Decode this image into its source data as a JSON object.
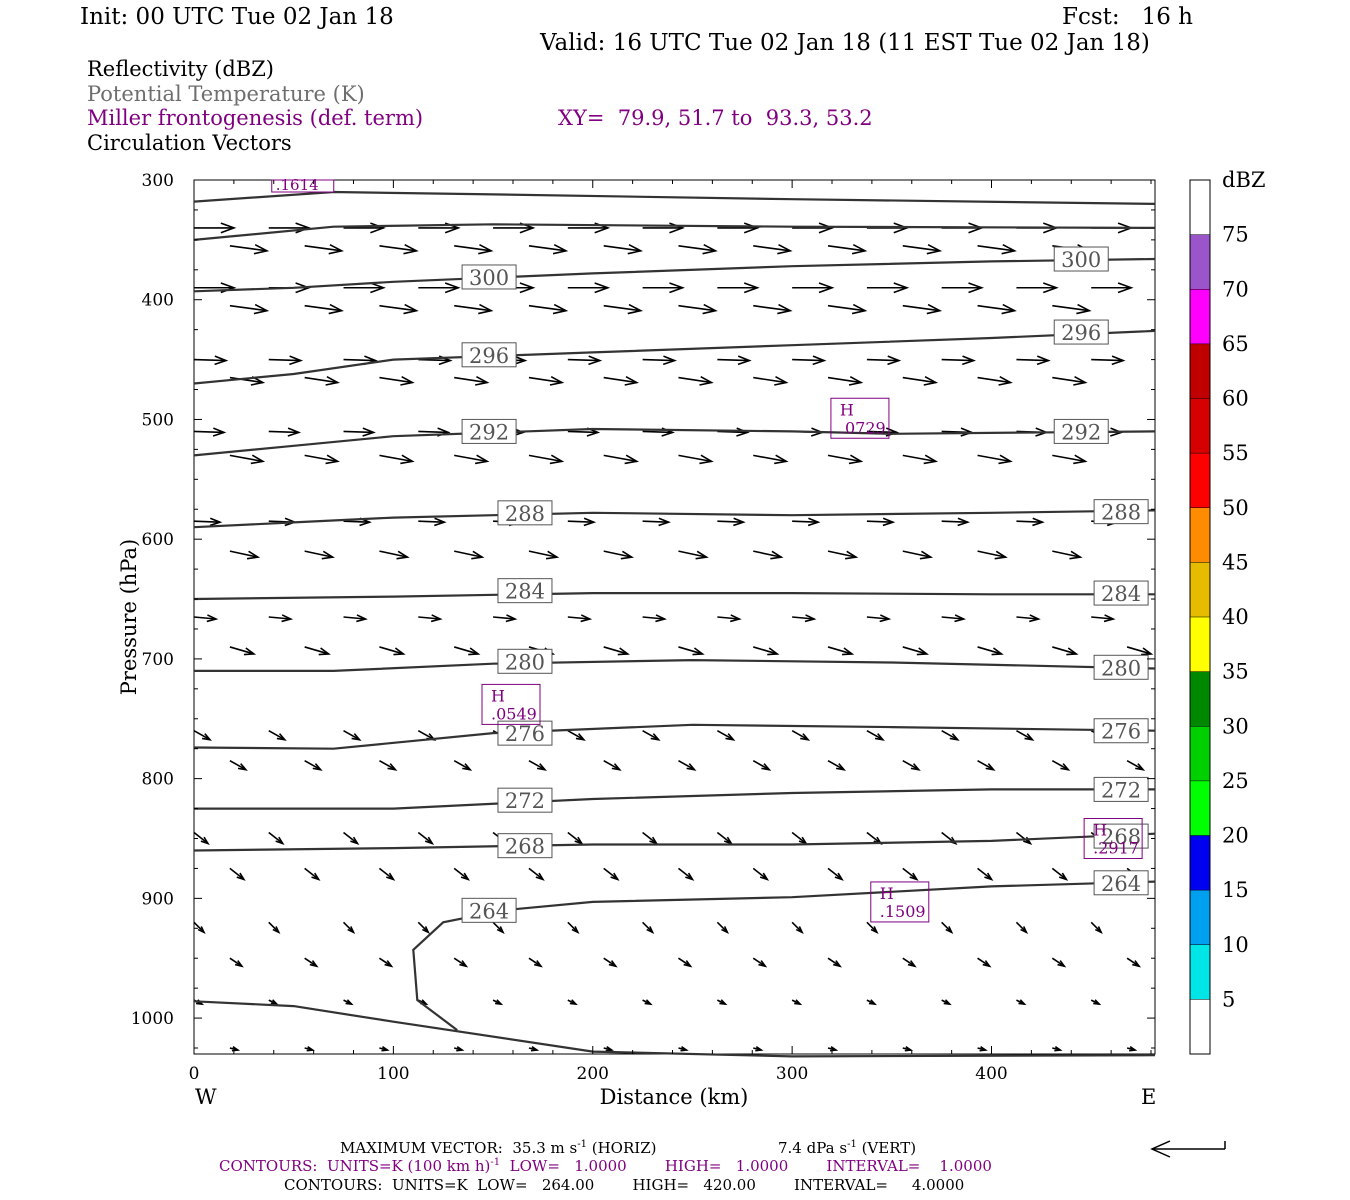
{
  "header": {
    "init": "Init: 00 UTC Tue 02 Jan 18",
    "fcst": "Fcst:   16 h",
    "valid": "Valid: 16 UTC Tue 02 Jan 18 (11 EST Tue 02 Jan 18)",
    "fields": [
      "Reflectivity (dBZ)",
      "Potential Temperature (K)",
      "Miller frontogenesis (def. term)",
      "Circulation Vectors"
    ],
    "xy": "XY=  79.9, 51.7 to  93.3, 53.2"
  },
  "colors": {
    "purple": "#800080",
    "gray_text": "#6e6e6e",
    "contour": "#333333"
  },
  "chart_data": {
    "type": "cross-section",
    "xlabel": "Distance (km)",
    "ylabel": "Pressure (hPa)",
    "x_ticks": [
      0,
      100,
      200,
      300,
      400
    ],
    "y_ticks": [
      300,
      400,
      500,
      600,
      700,
      800,
      900,
      1000
    ],
    "xlim": [
      0,
      482
    ],
    "ylim": [
      1030,
      300
    ],
    "y_scale": "linear",
    "west_label": "W",
    "east_label": "E",
    "theta_contours": [
      {
        "value": 300,
        "label": "300",
        "points": [
          [
            0,
            393
          ],
          [
            50,
            390
          ],
          [
            100,
            385
          ],
          [
            200,
            378
          ],
          [
            300,
            372
          ],
          [
            400,
            368
          ],
          [
            482,
            366
          ]
        ]
      },
      {
        "value": 296,
        "label": "296",
        "points": [
          [
            0,
            470
          ],
          [
            50,
            462
          ],
          [
            100,
            450
          ],
          [
            200,
            444
          ],
          [
            300,
            438
          ],
          [
            400,
            432
          ],
          [
            482,
            426
          ]
        ]
      },
      {
        "value": 292,
        "label": "292",
        "points": [
          [
            0,
            530
          ],
          [
            50,
            522
          ],
          [
            100,
            514
          ],
          [
            200,
            508
          ],
          [
            300,
            510
          ],
          [
            350,
            512
          ],
          [
            482,
            510
          ]
        ]
      },
      {
        "value": 288,
        "label": "288",
        "points": [
          [
            0,
            590
          ],
          [
            50,
            586
          ],
          [
            100,
            582
          ],
          [
            200,
            578
          ],
          [
            300,
            580
          ],
          [
            400,
            578
          ],
          [
            482,
            576
          ]
        ]
      },
      {
        "value": 284,
        "label": "284",
        "points": [
          [
            0,
            650
          ],
          [
            100,
            648
          ],
          [
            200,
            645
          ],
          [
            300,
            645
          ],
          [
            400,
            646
          ],
          [
            482,
            646
          ]
        ]
      },
      {
        "value": 280,
        "label": "280",
        "points": [
          [
            0,
            710
          ],
          [
            70,
            710
          ],
          [
            150,
            704
          ],
          [
            250,
            701
          ],
          [
            350,
            703
          ],
          [
            482,
            708
          ]
        ]
      },
      {
        "value": 276,
        "label": "276",
        "points": [
          [
            0,
            774
          ],
          [
            70,
            775
          ],
          [
            150,
            762
          ],
          [
            250,
            755
          ],
          [
            350,
            757
          ],
          [
            482,
            760
          ]
        ]
      },
      {
        "value": 272,
        "label": "272",
        "points": [
          [
            0,
            825
          ],
          [
            100,
            825
          ],
          [
            200,
            817
          ],
          [
            300,
            812
          ],
          [
            400,
            809
          ],
          [
            482,
            809
          ]
        ]
      },
      {
        "value": 268,
        "label": "268",
        "points": [
          [
            0,
            860
          ],
          [
            100,
            858
          ],
          [
            200,
            855
          ],
          [
            300,
            855
          ],
          [
            400,
            852
          ],
          [
            482,
            846
          ]
        ]
      },
      {
        "value": 264,
        "label": "264",
        "points": [
          [
            132,
            1010
          ],
          [
            112,
            985
          ],
          [
            110,
            943
          ],
          [
            125,
            920
          ],
          [
            155,
            910
          ],
          [
            200,
            903
          ],
          [
            300,
            899
          ],
          [
            400,
            890
          ],
          [
            482,
            886
          ]
        ]
      },
      {
        "value": 308,
        "label": "",
        "points": [
          [
            0,
            318
          ],
          [
            70,
            310
          ],
          [
            150,
            312
          ],
          [
            300,
            316
          ],
          [
            482,
            320
          ]
        ]
      },
      {
        "value": 304,
        "label": "",
        "points": [
          [
            0,
            350
          ],
          [
            70,
            339
          ],
          [
            150,
            337
          ],
          [
            300,
            339
          ],
          [
            482,
            340
          ]
        ]
      },
      {
        "value": 260,
        "label": "",
        "points": [
          [
            0,
            986
          ],
          [
            50,
            990
          ],
          [
            100,
            1003
          ],
          [
            200,
            1028
          ],
          [
            300,
            1032
          ],
          [
            482,
            1031
          ]
        ]
      }
    ],
    "theta_labels": [
      {
        "label": "300",
        "x": 148,
        "p": 381
      },
      {
        "label": "300",
        "x": 445,
        "p": 366
      },
      {
        "label": "296",
        "x": 148,
        "p": 446
      },
      {
        "label": "296",
        "x": 445,
        "p": 427
      },
      {
        "label": "292",
        "x": 148,
        "p": 510
      },
      {
        "label": "292",
        "x": 445,
        "p": 510
      },
      {
        "label": "288",
        "x": 166,
        "p": 578
      },
      {
        "label": "288",
        "x": 465,
        "p": 577
      },
      {
        "label": "284",
        "x": 166,
        "p": 643
      },
      {
        "label": "284",
        "x": 465,
        "p": 645
      },
      {
        "label": "280",
        "x": 166,
        "p": 702
      },
      {
        "label": "280",
        "x": 465,
        "p": 707
      },
      {
        "label": "276",
        "x": 166,
        "p": 762
      },
      {
        "label": "276",
        "x": 465,
        "p": 760
      },
      {
        "label": "272",
        "x": 166,
        "p": 818
      },
      {
        "label": "272",
        "x": 465,
        "p": 809
      },
      {
        "label": "268",
        "x": 166,
        "p": 856
      },
      {
        "label": "268",
        "x": 465,
        "p": 848
      },
      {
        "label": "264",
        "x": 148,
        "p": 910
      },
      {
        "label": "264",
        "x": 465,
        "p": 887
      }
    ],
    "frontogenesis_max": [
      {
        "letter": "",
        "value": ".1614",
        "x": 40,
        "p": 300
      },
      {
        "letter": "H",
        "value": ".0729",
        "x": 334,
        "p": 499
      },
      {
        "letter": "H",
        "value": ".0549",
        "x": 159,
        "p": 738
      },
      {
        "letter": "H",
        "value": ".2917",
        "x": 461,
        "p": 850
      },
      {
        "letter": "H",
        "value": ".1509",
        "x": 354,
        "p": 903
      }
    ],
    "reflectivity_scale": {
      "unit": "dBZ",
      "levels": [
        "5",
        "10",
        "15",
        "20",
        "25",
        "30",
        "35",
        "40",
        "45",
        "50",
        "55",
        "60",
        "65",
        "70",
        "75"
      ],
      "colors": [
        "#00e5e5",
        "#00a0f0",
        "#0000f0",
        "#00ff00",
        "#00d000",
        "#008800",
        "#ffff00",
        "#e5bc00",
        "#ff8c00",
        "#ff0000",
        "#d60000",
        "#c00000",
        "#ff00ff",
        "#9955c9"
      ]
    },
    "vector_rows": [
      {
        "p": 340,
        "u": 40,
        "v": 0
      },
      {
        "p": 355,
        "u": 37,
        "v": 5
      },
      {
        "p": 390,
        "u": 40,
        "v": 0
      },
      {
        "p": 405,
        "u": 37,
        "v": 5
      },
      {
        "p": 450,
        "u": 32,
        "v": 1
      },
      {
        "p": 465,
        "u": 33,
        "v": 5
      },
      {
        "p": 510,
        "u": 30,
        "v": 1
      },
      {
        "p": 530,
        "u": 33,
        "v": 6
      },
      {
        "p": 585,
        "u": 26,
        "v": 1
      },
      {
        "p": 610,
        "u": 28,
        "v": 6
      },
      {
        "p": 665,
        "u": 22,
        "v": 2
      },
      {
        "p": 690,
        "u": 24,
        "v": 7
      },
      {
        "p": 760,
        "u": 16,
        "v": 9
      },
      {
        "p": 785,
        "u": 16,
        "v": 9
      },
      {
        "p": 845,
        "u": 14,
        "v": 11
      },
      {
        "p": 875,
        "u": 14,
        "v": 11
      },
      {
        "p": 920,
        "u": 10,
        "v": 10
      },
      {
        "p": 950,
        "u": 12,
        "v": 8
      },
      {
        "p": 985,
        "u": 8,
        "v": 4
      },
      {
        "p": 1025,
        "u": 8,
        "v": 2
      }
    ]
  },
  "footer": {
    "max_vector": "MAXIMUM VECTOR:  35.3 m s",
    "max_vector_sup": "-1",
    "horiz": " (HORIZ)",
    "vert": "7.4 dPa s",
    "vert_sup": "-1",
    "vert_tail": " (VERT)",
    "contours1_a": "CONTOURS:  UNITS=K (100 km h)",
    "contours1_sup": "-1",
    "contours1_b": "  LOW=   1.0000        HIGH=   1.0000        INTERVAL=    1.0000",
    "contours2": "CONTOURS:  UNITS=K  LOW=   264.00        HIGH=   420.00        INTERVAL=     4.0000"
  }
}
